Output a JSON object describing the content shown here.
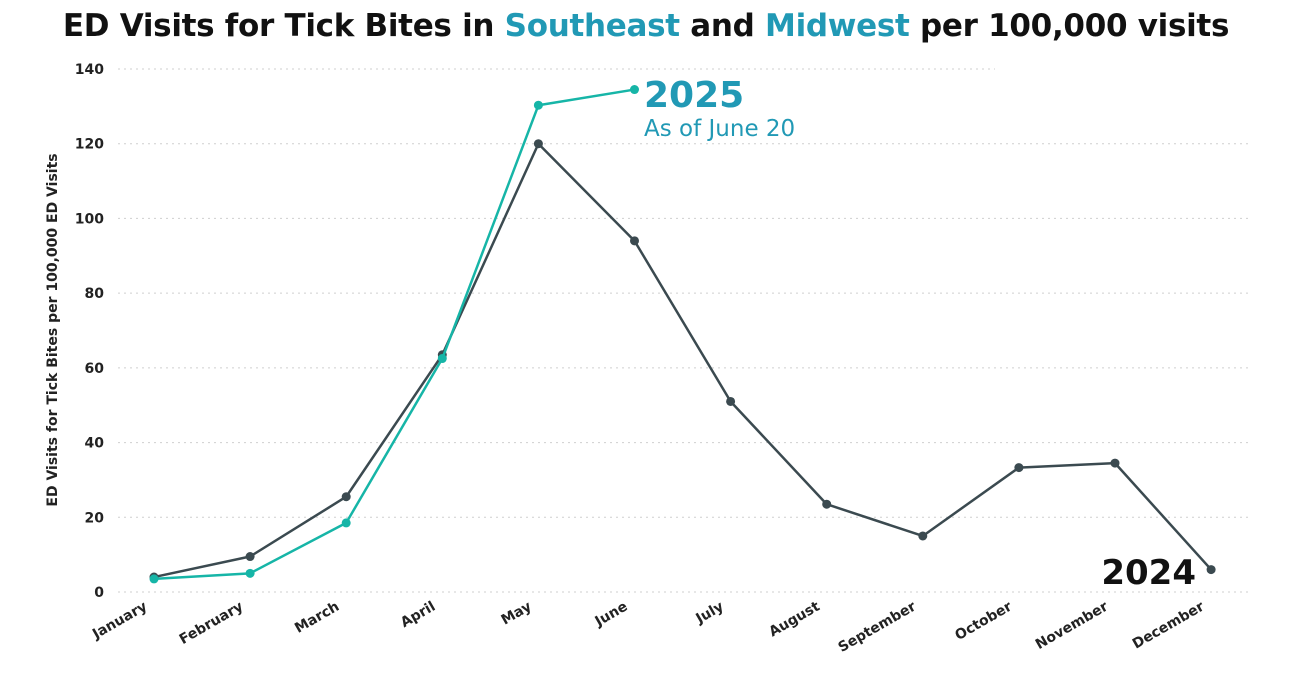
{
  "title": {
    "part1": "ED Visits for Tick Bites in ",
    "region1": "Southeast",
    "part2": " and ",
    "region2": "Midwest",
    "part3": " per 100,000 visits"
  },
  "colors": {
    "accent_title": "#2199b5",
    "series_2025": "#16b5a7",
    "series_2024": "#3b4a50",
    "label_2025": "#2199b5"
  },
  "chart_data": {
    "type": "line",
    "title": "ED Visits for Tick Bites in Southeast and Midwest per 100,000 visits",
    "xlabel": "",
    "ylabel": "ED Visits for Tick Bites per 100,000 ED Visits",
    "categories": [
      "January",
      "February",
      "March",
      "April",
      "May",
      "June",
      "July",
      "August",
      "September",
      "October",
      "November",
      "December"
    ],
    "ylim": [
      0,
      140
    ],
    "yticks": [
      0,
      20,
      40,
      60,
      80,
      100,
      120,
      140
    ],
    "grid": true,
    "series": [
      {
        "name": "2024",
        "values": [
          4,
          9.5,
          25.5,
          63.5,
          120,
          94,
          51,
          23.5,
          15,
          33.3,
          34.5,
          6
        ]
      },
      {
        "name": "2025",
        "values": [
          3.5,
          5,
          18.5,
          62.5,
          130.3,
          134.5,
          null,
          null,
          null,
          null,
          null,
          null
        ]
      }
    ],
    "annotations": {
      "series_2025_label": "2025",
      "series_2025_note": "As of June 20",
      "series_2024_label": "2024"
    }
  }
}
